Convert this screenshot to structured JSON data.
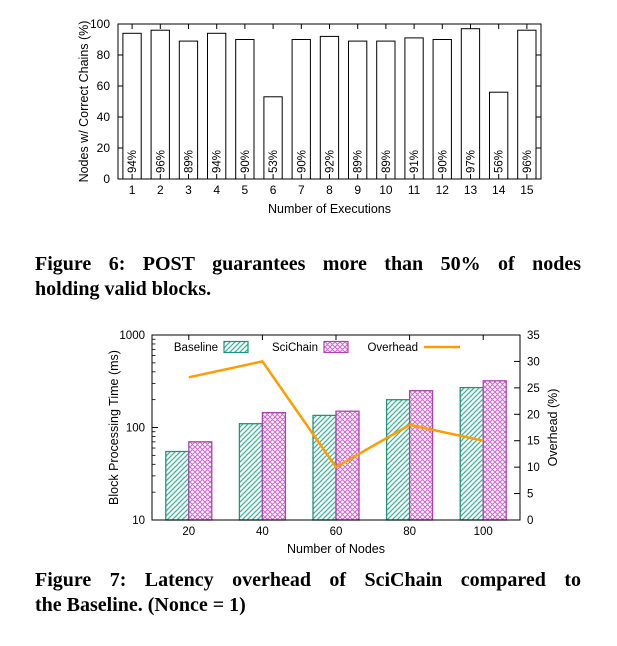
{
  "figure6": {
    "caption_lines": [
      "Figure 6: POST guarantees more than 50% of nodes",
      "holding valid blocks."
    ]
  },
  "figure7": {
    "caption_lines": [
      "Figure 7: Latency overhead of SciChain compared to",
      "the Baseline. (Nonce = 1)"
    ]
  },
  "chart_data": [
    {
      "type": "bar",
      "title": "",
      "xlabel": "Number of Executions",
      "ylabel": "Nodes w/ Correct Chains (%)",
      "categories": [
        "1",
        "2",
        "3",
        "4",
        "5",
        "6",
        "7",
        "8",
        "9",
        "10",
        "11",
        "12",
        "13",
        "14",
        "15"
      ],
      "values": [
        94,
        96,
        89,
        94,
        90,
        53,
        90,
        92,
        89,
        89,
        91,
        90,
        97,
        56,
        96
      ],
      "bar_labels": [
        "94%",
        "96%",
        "89%",
        "94%",
        "90%",
        "53%",
        "90%",
        "92%",
        "89%",
        "89%",
        "91%",
        "90%",
        "97%",
        "56%",
        "96%"
      ],
      "ylim": [
        0,
        100
      ],
      "yticks": [
        0,
        20,
        40,
        60,
        80,
        100
      ],
      "bar_fill": "#ffffff",
      "bar_stroke": "#000000",
      "grid": false,
      "legend_position": "none"
    },
    {
      "type": "bar",
      "subtype": "grouped-bars-with-overlay-line",
      "title": "",
      "xlabel": "Number of Nodes",
      "ylabel_left": "Block Processing Time (ms)",
      "ylabel_right": "Overhead (%)",
      "categories": [
        "20",
        "40",
        "60",
        "80",
        "100"
      ],
      "series": [
        {
          "name": "Baseline",
          "values": [
            55,
            110,
            135,
            200,
            270
          ],
          "color": "#3eb49a",
          "border": "#21927b",
          "hatch": "diagonal"
        },
        {
          "name": "SciChain",
          "values": [
            70,
            145,
            150,
            250,
            320
          ],
          "color": "#cf68cf",
          "border": "#ad43ad",
          "hatch": "cross"
        }
      ],
      "line": {
        "name": "Overhead",
        "values": [
          27,
          30,
          10,
          18,
          15
        ],
        "color": "#ff9c00",
        "axis": "right"
      },
      "yscale_left": "log",
      "ylim_left": [
        10,
        1000
      ],
      "yticks_left": [
        10,
        100,
        1000
      ],
      "ylim_right": [
        0,
        35
      ],
      "yticks_right": [
        0,
        5,
        10,
        15,
        20,
        25,
        30,
        35
      ],
      "grid": false,
      "legend_position": "top-inside"
    }
  ]
}
